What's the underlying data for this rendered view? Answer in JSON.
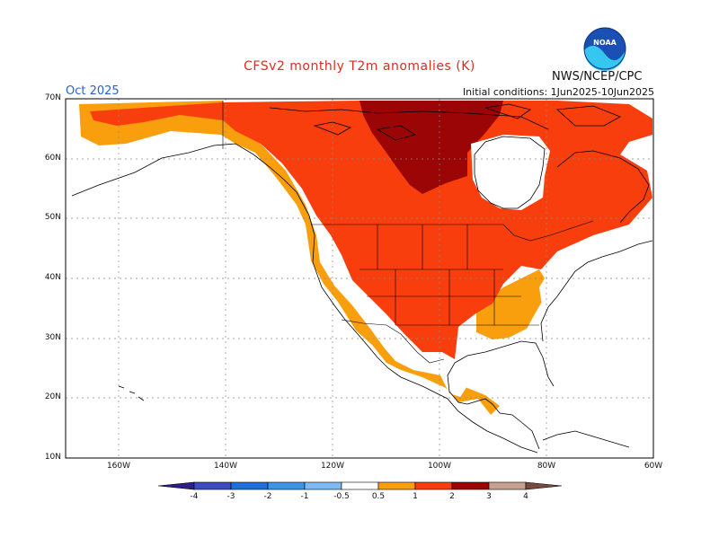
{
  "title": "CFSv2 monthly T2m anomalies (K)",
  "organization": "NWS/NCEP/CPC",
  "logo_text": "NOAA",
  "month": "Oct 2025",
  "initial_conditions": "Initial conditions: 1Jun2025-10Jun2025",
  "lat_labels": [
    "70N",
    "60N",
    "50N",
    "40N",
    "30N",
    "20N",
    "10N"
  ],
  "lon_labels": [
    "160W",
    "140W",
    "120W",
    "100W",
    "80W",
    "60W"
  ],
  "colorbar": {
    "labels": [
      "-4",
      "-3",
      "-2",
      "-1",
      "-0.5",
      "0.5",
      "1",
      "2",
      "3",
      "4"
    ],
    "colors": [
      "#2d1e8a",
      "#3a4cc0",
      "#1e6fd9",
      "#3d95e8",
      "#7fb9f2",
      "#ffffff",
      "#f99f0e",
      "#f93e0e",
      "#9b0505",
      "#c8a090",
      "#7a4a40"
    ]
  },
  "anomaly_colors": {
    "0.5-1": "#f99f0e",
    "1-2": "#f93e0e",
    "2-3": "#9b0505"
  }
}
